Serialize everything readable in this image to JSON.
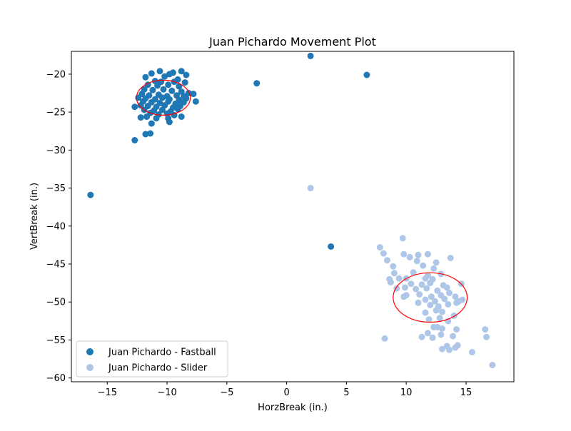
{
  "chart_data": {
    "type": "scatter",
    "title": "Juan Pichardo Movement Plot",
    "xlabel": "HorzBreak (in.)",
    "ylabel": "VertBreak (in.)",
    "xlim": [
      -18,
      19
    ],
    "ylim": [
      -60.5,
      -17
    ],
    "xticks": [
      -15,
      -10,
      -5,
      0,
      5,
      10,
      15
    ],
    "xtick_labels": [
      "−15",
      "−10",
      "−5",
      "0",
      "5",
      "10",
      "15"
    ],
    "yticks": [
      -20,
      -25,
      -30,
      -35,
      -40,
      -45,
      -50,
      -55,
      -60
    ],
    "ytick_labels": [
      "−20",
      "−25",
      "−30",
      "−35",
      "−40",
      "−45",
      "−50",
      "−55",
      "−60"
    ],
    "grid": false,
    "legend_position": "lower-left",
    "series": [
      {
        "name": "Juan Pichardo - Fastball",
        "color": "#1f77b4",
        "points": [
          [
            -10.6,
            -19.6
          ],
          [
            -11.3,
            -19.9
          ],
          [
            -9.8,
            -20.0
          ],
          [
            -8.8,
            -19.6
          ],
          [
            -8.4,
            -20.1
          ],
          [
            -9.5,
            -19.8
          ],
          [
            -11.8,
            -20.4
          ],
          [
            -10.2,
            -20.3
          ],
          [
            -9.1,
            -20.7
          ],
          [
            -11.0,
            -20.9
          ],
          [
            -10.5,
            -21.0
          ],
          [
            -9.4,
            -21.0
          ],
          [
            -8.5,
            -21.1
          ],
          [
            -11.6,
            -21.4
          ],
          [
            -10.8,
            -21.5
          ],
          [
            -9.9,
            -21.4
          ],
          [
            -9.0,
            -21.6
          ],
          [
            -11.9,
            -22.0
          ],
          [
            -11.2,
            -22.1
          ],
          [
            -10.3,
            -22.0
          ],
          [
            -9.6,
            -22.2
          ],
          [
            -8.8,
            -22.3
          ],
          [
            -8.2,
            -22.5
          ],
          [
            -7.8,
            -22.6
          ],
          [
            -12.1,
            -22.6
          ],
          [
            -11.5,
            -22.8
          ],
          [
            -10.7,
            -22.7
          ],
          [
            -10.0,
            -22.9
          ],
          [
            -9.2,
            -22.8
          ],
          [
            -8.6,
            -22.9
          ],
          [
            -12.4,
            -23.1
          ],
          [
            -11.8,
            -23.2
          ],
          [
            -11.0,
            -23.3
          ],
          [
            -10.4,
            -23.1
          ],
          [
            -9.8,
            -23.3
          ],
          [
            -9.0,
            -23.4
          ],
          [
            -8.4,
            -23.2
          ],
          [
            -12.0,
            -23.6
          ],
          [
            -11.3,
            -23.7
          ],
          [
            -10.6,
            -23.8
          ],
          [
            -9.9,
            -23.6
          ],
          [
            -9.3,
            -23.9
          ],
          [
            -8.6,
            -23.7
          ],
          [
            -7.6,
            -23.6
          ],
          [
            -12.2,
            -24.1
          ],
          [
            -11.6,
            -24.2
          ],
          [
            -10.9,
            -24.3
          ],
          [
            -10.2,
            -24.1
          ],
          [
            -9.5,
            -24.4
          ],
          [
            -8.9,
            -24.2
          ],
          [
            -12.7,
            -24.3
          ],
          [
            -11.9,
            -24.7
          ],
          [
            -11.1,
            -24.8
          ],
          [
            -10.4,
            -24.7
          ],
          [
            -9.7,
            -24.9
          ],
          [
            -9.1,
            -24.6
          ],
          [
            -11.4,
            -25.1
          ],
          [
            -10.7,
            -25.3
          ],
          [
            -10.0,
            -25.2
          ],
          [
            -9.4,
            -25.4
          ],
          [
            -12.2,
            -25.7
          ],
          [
            -11.7,
            -25.6
          ],
          [
            -10.9,
            -25.8
          ],
          [
            -9.9,
            -25.8
          ],
          [
            -8.8,
            -25.6
          ],
          [
            -9.8,
            -26.3
          ],
          [
            -11.3,
            -26.5
          ],
          [
            -11.8,
            -27.9
          ],
          [
            -11.4,
            -27.8
          ],
          [
            -12.7,
            -28.7
          ],
          [
            -16.4,
            -35.9
          ],
          [
            2.0,
            -17.6
          ],
          [
            6.7,
            -20.1
          ],
          [
            -2.5,
            -21.2
          ],
          [
            3.7,
            -42.7
          ]
        ]
      },
      {
        "name": "Juan Pichardo - Slider",
        "color": "#aec7e8",
        "points": [
          [
            2.0,
            -35.0
          ],
          [
            9.7,
            -41.6
          ],
          [
            7.8,
            -42.8
          ],
          [
            8.1,
            -43.6
          ],
          [
            9.8,
            -43.7
          ],
          [
            10.3,
            -44.1
          ],
          [
            11.0,
            -43.8
          ],
          [
            11.8,
            -43.7
          ],
          [
            13.7,
            -44.2
          ],
          [
            8.4,
            -44.5
          ],
          [
            10.9,
            -44.6
          ],
          [
            12.5,
            -44.8
          ],
          [
            8.9,
            -45.3
          ],
          [
            11.4,
            -45.2
          ],
          [
            12.3,
            -45.6
          ],
          [
            9.0,
            -46.2
          ],
          [
            10.6,
            -46.1
          ],
          [
            11.8,
            -46.5
          ],
          [
            12.9,
            -46.3
          ],
          [
            8.6,
            -47.0
          ],
          [
            9.4,
            -46.9
          ],
          [
            10.0,
            -46.9
          ],
          [
            11.6,
            -46.9
          ],
          [
            12.2,
            -47.0
          ],
          [
            8.7,
            -47.4
          ],
          [
            10.4,
            -47.6
          ],
          [
            11.3,
            -47.7
          ],
          [
            12.0,
            -47.5
          ],
          [
            13.1,
            -47.8
          ],
          [
            14.6,
            -47.6
          ],
          [
            9.2,
            -48.2
          ],
          [
            9.9,
            -48.1
          ],
          [
            10.8,
            -48.3
          ],
          [
            11.7,
            -48.2
          ],
          [
            12.6,
            -48.5
          ],
          [
            13.4,
            -48.1
          ],
          [
            10.0,
            -49.1
          ],
          [
            11.1,
            -49.0
          ],
          [
            12.1,
            -49.3
          ],
          [
            12.9,
            -49.1
          ],
          [
            13.6,
            -48.8
          ],
          [
            14.1,
            -49.3
          ],
          [
            9.8,
            -49.3
          ],
          [
            11.6,
            -49.7
          ],
          [
            12.4,
            -49.9
          ],
          [
            13.2,
            -49.6
          ],
          [
            14.4,
            -49.9
          ],
          [
            14.7,
            -49.7
          ],
          [
            11.0,
            -50.1
          ],
          [
            12.0,
            -50.4
          ],
          [
            12.7,
            -50.6
          ],
          [
            13.5,
            -50.3
          ],
          [
            14.2,
            -50.1
          ],
          [
            12.5,
            -51.1
          ],
          [
            11.6,
            -51.4
          ],
          [
            13.0,
            -51.3
          ],
          [
            14.0,
            -51.8
          ],
          [
            11.9,
            -52.3
          ],
          [
            12.8,
            -52.1
          ],
          [
            13.5,
            -52.5
          ],
          [
            12.3,
            -53.3
          ],
          [
            13.0,
            -53.5
          ],
          [
            12.6,
            -53.3
          ],
          [
            14.2,
            -53.6
          ],
          [
            11.8,
            -54.1
          ],
          [
            11.3,
            -54.6
          ],
          [
            12.2,
            -54.7
          ],
          [
            12.9,
            -54.3
          ],
          [
            13.9,
            -54.5
          ],
          [
            16.6,
            -53.6
          ],
          [
            16.7,
            -54.6
          ],
          [
            8.2,
            -54.8
          ],
          [
            13.4,
            -55.8
          ],
          [
            14.3,
            -55.7
          ],
          [
            14.1,
            -56.0
          ],
          [
            13.0,
            -56.2
          ],
          [
            13.6,
            -56.3
          ],
          [
            15.5,
            -56.6
          ],
          [
            17.2,
            -58.3
          ]
        ]
      }
    ],
    "ellipses": [
      {
        "series": "Juan Pichardo - Fastball",
        "center": [
          -10.3,
          -23.1
        ],
        "width": 4.5,
        "height": 4.6,
        "color": "#ff0000"
      },
      {
        "series": "Juan Pichardo - Slider",
        "center": [
          12.0,
          -49.4
        ],
        "width": 6.2,
        "height": 6.5,
        "color": "#ff0000"
      }
    ]
  }
}
